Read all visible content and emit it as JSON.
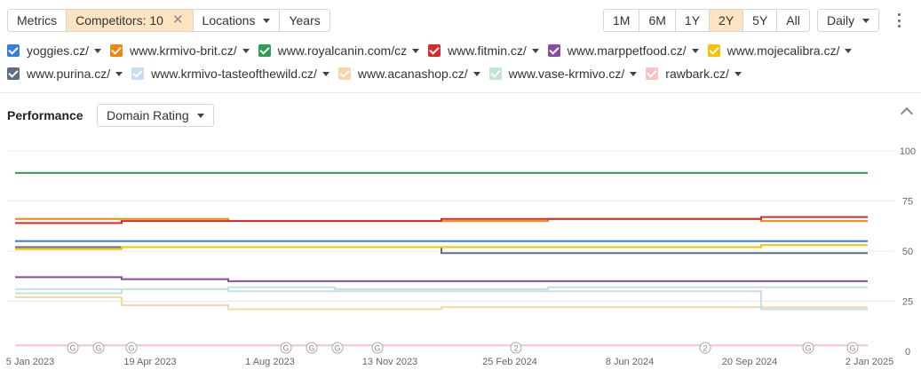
{
  "toolbar": {
    "metrics_label": "Metrics",
    "competitors_label": "Competitors: 10",
    "locations_label": "Locations",
    "years_label": "Years",
    "ranges": [
      "1M",
      "6M",
      "1Y",
      "2Y",
      "5Y",
      "All"
    ],
    "active_range": "2Y",
    "interval_label": "Daily"
  },
  "legend": [
    {
      "label": "yoggies.cz/",
      "color": "#3a7fd5"
    },
    {
      "label": "www.krmivo-brit.cz/",
      "color": "#f0870a"
    },
    {
      "label": "www.royalcanin.com/cz",
      "color": "#2e9e52"
    },
    {
      "label": "www.fitmin.cz/",
      "color": "#d62b2b"
    },
    {
      "label": "www.marppetfood.cz/",
      "color": "#8a4ba3"
    },
    {
      "label": "www.mojecalibra.cz/",
      "color": "#f5c400"
    },
    {
      "label": "www.purina.cz/",
      "color": "#5e6e82"
    },
    {
      "label": "www.krmivo-tasteofthewild.cz/",
      "color": "#c6ddf3"
    },
    {
      "label": "www.acanashop.cz/",
      "color": "#f9d5a8"
    },
    {
      "label": "www.vase-krmivo.cz/",
      "color": "#c2e6cf"
    },
    {
      "label": "rawbark.cz/",
      "color": "#f6c4c4"
    }
  ],
  "performance": {
    "title": "Performance",
    "metric_label": "Domain Rating"
  },
  "chart_data": {
    "type": "line",
    "x": [
      "5 Jan 2023",
      "19 Apr 2023",
      "1 Aug 2023",
      "13 Nov 2023",
      "25 Feb 2024",
      "8 Jun 2024",
      "20 Sep 2024",
      "2 Jan 2025"
    ],
    "ylim": [
      0,
      100
    ],
    "yticks": [
      100,
      75,
      50,
      25,
      0
    ],
    "grid": true,
    "series": [
      {
        "name": "www.royalcanin.com/cz",
        "color": "#2e9e52",
        "values": [
          89,
          89,
          89,
          89,
          89,
          89,
          89,
          89
        ]
      },
      {
        "name": "www.fitmin.cz/",
        "color": "#d62b2b",
        "values": [
          64,
          65,
          65,
          65,
          66,
          66,
          66,
          67
        ]
      },
      {
        "name": "www.krmivo-brit.cz/",
        "color": "#f0870a",
        "values": [
          66,
          66,
          65,
          65,
          65,
          66,
          66,
          65
        ]
      },
      {
        "name": "yoggies.cz/",
        "color": "#3a7fd5",
        "values": [
          55,
          55,
          55,
          55,
          55,
          55,
          55,
          55
        ]
      },
      {
        "name": "www.mojecalibra.cz/",
        "color": "#f5c400",
        "values": [
          51,
          52,
          52,
          52,
          52,
          52,
          52,
          53
        ]
      },
      {
        "name": "www.purina.cz/",
        "color": "#5e6e82",
        "values": [
          52,
          52,
          52,
          52,
          49,
          49,
          49,
          49
        ]
      },
      {
        "name": "www.marppetfood.cz/",
        "color": "#8a4ba3",
        "values": [
          37,
          36,
          35,
          35,
          35,
          35,
          35,
          35
        ]
      },
      {
        "name": "www.vase-krmivo.cz/",
        "color": "#c2e6cf",
        "values": [
          29,
          31,
          32,
          31,
          31,
          32,
          32,
          32
        ]
      },
      {
        "name": "www.krmivo-tasteofthewild.cz/",
        "color": "#c6ddf3",
        "values": [
          31,
          31,
          30,
          30,
          30,
          30,
          30,
          21
        ]
      },
      {
        "name": "www.acanashop.cz/",
        "color": "#f9d5a8",
        "values": [
          27,
          23,
          21,
          21,
          22,
          22,
          22,
          22
        ]
      },
      {
        "name": "rawbark.cz/",
        "color": "#f6c4c4",
        "values": [
          3,
          3,
          3,
          3,
          3,
          3,
          3,
          3
        ]
      }
    ],
    "annotations": [
      "G",
      "G",
      "G",
      "G",
      "G",
      "G",
      "G",
      "2",
      "2",
      "G",
      "G"
    ]
  }
}
